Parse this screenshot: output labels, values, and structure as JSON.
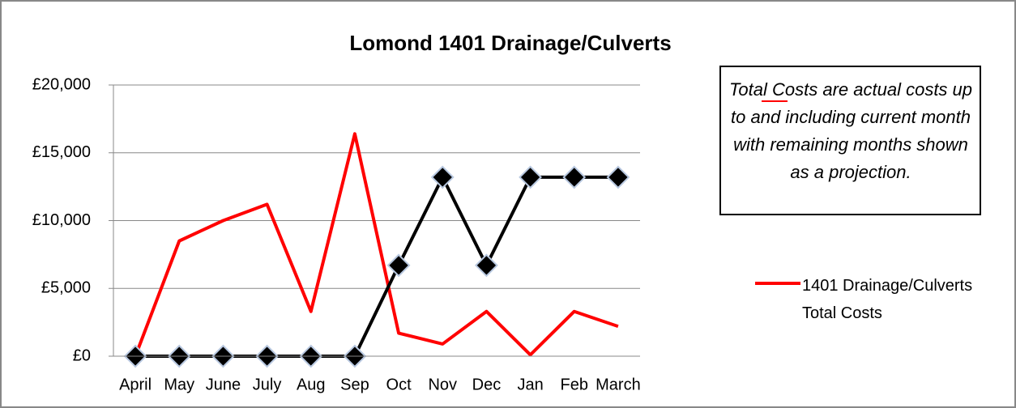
{
  "chart_data": {
    "type": "line",
    "title": "Lomond 1401 Drainage/Culverts",
    "annotation": "Total Costs are actual costs up to and including current month with remaining months shown as a projection.",
    "categories": [
      "April",
      "May",
      "June",
      "July",
      "Aug",
      "Sep",
      "Oct",
      "Nov",
      "Dec",
      "Jan",
      "Feb",
      "March"
    ],
    "series": [
      {
        "name": "1401 Drainage/Culverts Total Costs",
        "color": "#ff0000",
        "values": [
          0,
          8500,
          10000,
          11200,
          3300,
          16400,
          1700,
          900,
          3300,
          100,
          3300,
          2200
        ]
      },
      {
        "color": "#000000",
        "marker": "diamond",
        "values": [
          0,
          0,
          0,
          0,
          0,
          0,
          6700,
          13200,
          6700,
          13200,
          13200,
          13200
        ]
      }
    ],
    "ylim": [
      0,
      20000
    ],
    "yticks": [
      {
        "value": 0,
        "label": "£0"
      },
      {
        "value": 5000,
        "label": "£5,000"
      },
      {
        "value": 10000,
        "label": "£10,000"
      },
      {
        "value": 15000,
        "label": "£15,000"
      },
      {
        "value": 20000,
        "label": "£20,000"
      }
    ],
    "grid": true
  }
}
